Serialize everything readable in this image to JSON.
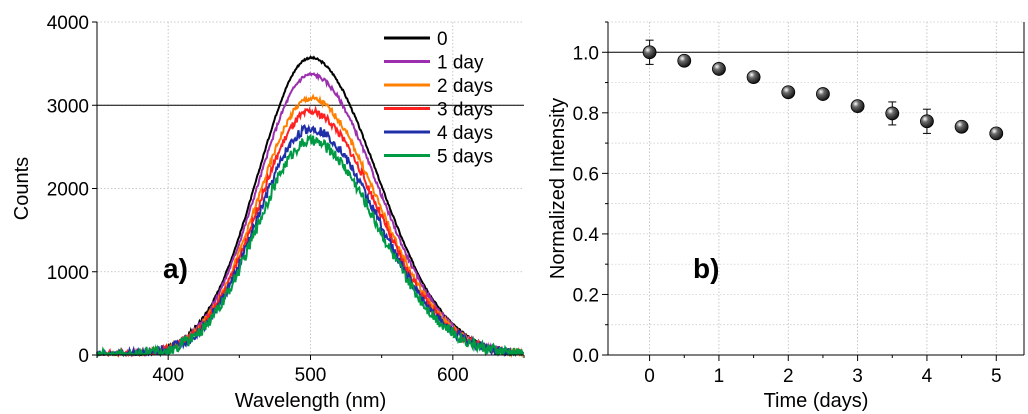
{
  "chart_data": [
    {
      "panel": "a)",
      "type": "line",
      "xlabel": "Wavelength (nm)",
      "ylabel": "Counts",
      "xlim": [
        350,
        650
      ],
      "ylim": [
        0,
        4000
      ],
      "xticks": [
        400,
        500,
        600
      ],
      "yticks": [
        0,
        1000,
        2000,
        3000,
        4000
      ],
      "grid": true,
      "legend_position": "top-right",
      "peak_x": 500,
      "series": [
        {
          "name": "0",
          "color": "#000000",
          "peak": 3570
        },
        {
          "name": "1 day",
          "color": "#9b2fae",
          "peak": 3370
        },
        {
          "name": "2 days",
          "color": "#ff7f00",
          "peak": 3080
        },
        {
          "name": "3 days",
          "color": "#ff2020",
          "peak": 2920
        },
        {
          "name": "4 days",
          "color": "#1f2fa8",
          "peak": 2720
        },
        {
          "name": "5 days",
          "color": "#009a44",
          "peak": 2570
        }
      ]
    },
    {
      "panel": "b)",
      "type": "scatter",
      "xlabel": "Time (days)",
      "ylabel": "Normalized Intensity",
      "xlim": [
        -0.6,
        5.4
      ],
      "ylim": [
        0.0,
        1.1
      ],
      "xticks": [
        0,
        1,
        2,
        3,
        4,
        5
      ],
      "yticks": [
        0.0,
        0.2,
        0.4,
        0.6,
        0.8,
        1.0
      ],
      "grid": true,
      "reference_line": 1.0,
      "x": [
        0,
        0.5,
        1,
        1.5,
        2,
        2.5,
        3,
        3.5,
        4,
        4.5,
        5
      ],
      "y": [
        1.0,
        0.972,
        0.945,
        0.918,
        0.868,
        0.862,
        0.822,
        0.798,
        0.772,
        0.754,
        0.732
      ],
      "yerr": [
        0.04,
        0.0,
        0.0,
        0.0,
        0.0,
        0.0,
        0.0,
        0.038,
        0.04,
        0.0,
        0.0
      ],
      "marker_color": "#111111"
    }
  ]
}
